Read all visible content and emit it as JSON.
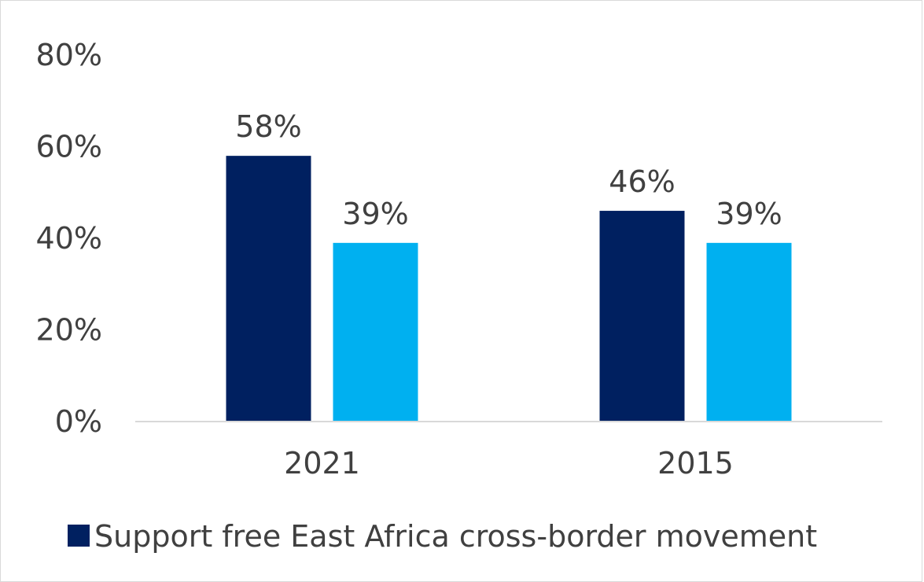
{
  "chart_data": {
    "type": "bar",
    "categories": [
      "2021",
      "2015"
    ],
    "series": [
      {
        "name": "Support free East Africa cross-border movement",
        "values": [
          58,
          46
        ],
        "color": "#002060"
      },
      {
        "values": [
          39,
          39
        ],
        "color": "#00b0f0"
      }
    ],
    "data_labels": [
      [
        "58%",
        "46%"
      ],
      [
        "39%",
        "39%"
      ]
    ],
    "y_ticks": [
      "0%",
      "20%",
      "40%",
      "60%",
      "80%"
    ],
    "ylim": [
      0,
      80
    ],
    "grid": false,
    "legend_position": "bottom-left"
  }
}
